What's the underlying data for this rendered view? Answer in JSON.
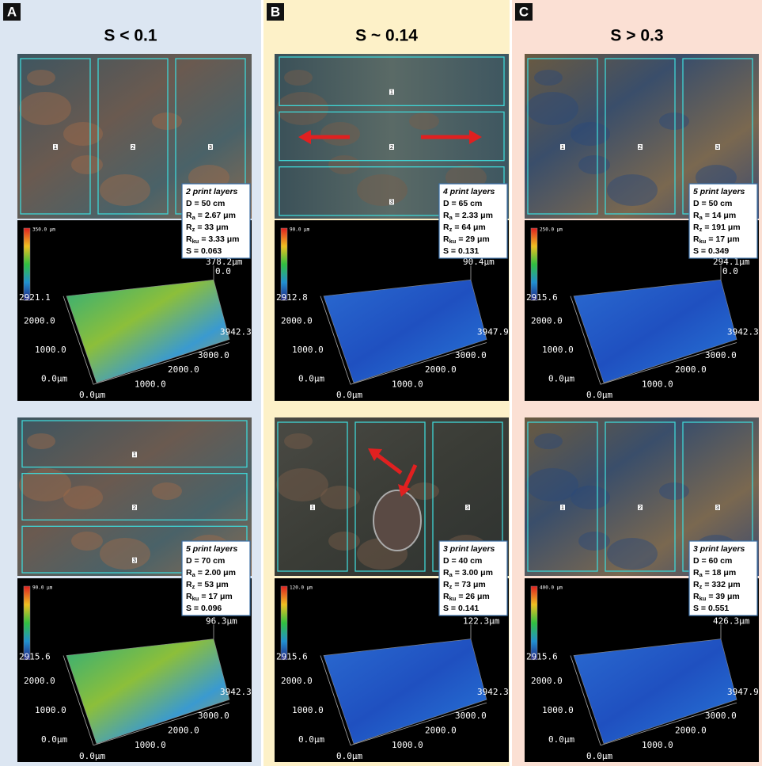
{
  "columns": [
    {
      "letter": "A",
      "title": "S < 0.1",
      "samples": [
        {
          "regions": [
            "1",
            "2",
            "3"
          ],
          "info": {
            "layers": "2 print layers",
            "D": "D = 50 cm",
            "Ra": {
              "symbol": "R",
              "sub": "a",
              "rest": "= 2.67 μm"
            },
            "Rz": {
              "symbol": "R",
              "sub": "z",
              "rest": "= 33 μm"
            },
            "Rku": {
              "symbol": "R",
              "sub": "ku",
              "rest": "= 3.33 μm"
            },
            "S": "S = 0.063"
          },
          "plot": {
            "cbar": "350.0 μm",
            "zmax": "378.2μm",
            "zmin": "0.0",
            "ymax": "2921.1",
            "y2": "2000.0",
            "y1": "1000.0",
            "y0": "0.0μm",
            "x0": "0.0μm",
            "x1": "1000.0",
            "x2": "2000.0",
            "x3": "3000.0",
            "xmax": "3942.3"
          }
        },
        {
          "regions": [
            "1",
            "2",
            "3"
          ],
          "info": {
            "layers": "5 print layers",
            "D": "D = 70 cm",
            "Ra": {
              "symbol": "R",
              "sub": "a",
              "rest": "= 2.00 μm"
            },
            "Rz": {
              "symbol": "R",
              "sub": "z",
              "rest": "= 53 μm"
            },
            "Rku": {
              "symbol": "R",
              "sub": "ku",
              "rest": "= 17 μm"
            },
            "S": "S = 0.096"
          },
          "plot": {
            "cbar": "90.0 μm",
            "zmax": "96.3μm",
            "ymax": "2915.6",
            "y2": "2000.0",
            "y1": "1000.0",
            "y0": "0.0μm",
            "x0": "0.0μm",
            "x1": "1000.0",
            "x2": "2000.0",
            "x3": "3000.0",
            "xmax": "3942.3"
          }
        }
      ]
    },
    {
      "letter": "B",
      "title": "S ~ 0.14",
      "samples": [
        {
          "regions": [
            "1",
            "2",
            "3"
          ],
          "info": {
            "layers": "4 print layers",
            "D": "D = 65 cm",
            "Ra": {
              "symbol": "R",
              "sub": "a",
              "rest": "= 2.33 μm"
            },
            "Rz": {
              "symbol": "R",
              "sub": "z",
              "rest": "= 64 μm"
            },
            "Rku": {
              "symbol": "R",
              "sub": "ku",
              "rest": "= 29 μm"
            },
            "S": "S = 0.131"
          },
          "plot": {
            "cbar": "90.0 μm",
            "zmax": "90.4μm",
            "ymax": "2912.8",
            "y2": "2000.0",
            "y1": "1000.0",
            "y0": "0.0μm",
            "x0": "0.0μm",
            "x1": "1000.0",
            "x2": "2000.0",
            "x3": "3000.0",
            "xmax": "3947.9"
          }
        },
        {
          "regions": [
            "1",
            "2",
            "3"
          ],
          "info": {
            "layers": "3 print layers",
            "D": "D = 40 cm",
            "Ra": {
              "symbol": "R",
              "sub": "a",
              "rest": "= 3.00 μm"
            },
            "Rz": {
              "symbol": "R",
              "sub": "z",
              "rest": "= 73 μm"
            },
            "Rku": {
              "symbol": "R",
              "sub": "ku",
              "rest": "= 26 μm"
            },
            "S": "S = 0.141"
          },
          "plot": {
            "cbar": "120.0 μm",
            "zmax": "122.3μm",
            "ymax": "2915.6",
            "y2": "2000.0",
            "y1": "1000.0",
            "y0": "0.0μm",
            "x0": "0.0μm",
            "x1": "1000.0",
            "x2": "2000.0",
            "x3": "3000.0",
            "xmax": "3942.3"
          }
        }
      ]
    },
    {
      "letter": "C",
      "title": "S > 0.3",
      "samples": [
        {
          "regions": [
            "1",
            "2",
            "3"
          ],
          "info": {
            "layers": "5 print layers",
            "D": "D = 50 cm",
            "Ra": {
              "symbol": "R",
              "sub": "a",
              "rest": "= 14 μm"
            },
            "Rz": {
              "symbol": "R",
              "sub": "z",
              "rest": "= 191 μm"
            },
            "Rku": {
              "symbol": "R",
              "sub": "ku",
              "rest": "= 17 μm"
            },
            "S": "S = 0.349"
          },
          "plot": {
            "cbar": "250.0 μm",
            "zmax": "294.1μm",
            "zmin": "0.0",
            "ymax": "2915.6",
            "y2": "2000.0",
            "y1": "1000.0",
            "y0": "0.0μm",
            "x0": "0.0μm",
            "x1": "1000.0",
            "x2": "2000.0",
            "x3": "3000.0",
            "xmax": "3942.3"
          }
        },
        {
          "regions": [
            "1",
            "2",
            "3"
          ],
          "info": {
            "layers": "3 print layers",
            "D": "D = 60 cm",
            "Ra": {
              "symbol": "R",
              "sub": "a",
              "rest": "= 18 μm"
            },
            "Rz": {
              "symbol": "R",
              "sub": "z",
              "rest": "= 332 μm"
            },
            "Rku": {
              "symbol": "R",
              "sub": "ku",
              "rest": "= 39 μm"
            },
            "S": "S = 0.551"
          },
          "plot": {
            "cbar": "400.0 μm",
            "zmax": "426.3μm",
            "ymax": "2915.6",
            "y2": "2000.0",
            "y1": "1000.0",
            "y0": "0.0μm",
            "x0": "0.0μm",
            "x1": "1000.0",
            "x2": "2000.0",
            "x3": "3000.0",
            "xmax": "3947.9"
          }
        }
      ]
    }
  ]
}
